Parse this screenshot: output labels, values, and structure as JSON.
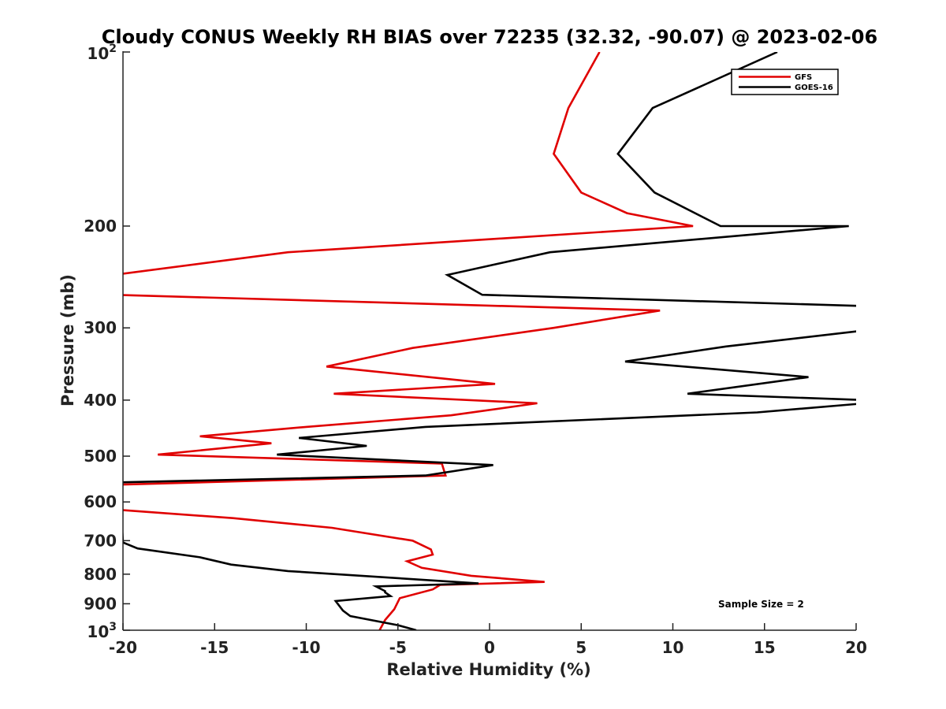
{
  "chart_data": {
    "type": "line",
    "title": "Cloudy CONUS Weekly RH BIAS over 72235 (32.32, -90.07) @ 2023-02-06",
    "xlabel": "Relative Humidity (%)",
    "ylabel": "Pressure (mb)",
    "xlim": [
      -20,
      20
    ],
    "ylim": [
      100,
      1000
    ],
    "yscale": "log",
    "y_reversed": true,
    "grid": false,
    "legend_position": "top-right",
    "x_ticks": [
      "-20",
      "-15",
      "-10",
      "-5",
      "0",
      "5",
      "10",
      "15",
      "20"
    ],
    "x_tick_values": [
      -20,
      -15,
      -10,
      -5,
      0,
      5,
      10,
      15,
      20
    ],
    "y_ticks": [
      {
        "value": 100,
        "base": "10",
        "exp": "2"
      },
      {
        "value": 200,
        "label": "200"
      },
      {
        "value": 300,
        "label": "300"
      },
      {
        "value": 400,
        "label": "400"
      },
      {
        "value": 500,
        "label": "500"
      },
      {
        "value": 600,
        "label": "600"
      },
      {
        "value": 700,
        "label": "700"
      },
      {
        "value": 800,
        "label": "800"
      },
      {
        "value": 900,
        "label": "900"
      },
      {
        "value": 1000,
        "base": "10",
        "exp": "3"
      }
    ],
    "annotation": "Sample Size = 2",
    "series": [
      {
        "name": "GFS",
        "color": "#e00000",
        "points": [
          [
            6.0,
            100
          ],
          [
            4.3,
            125
          ],
          [
            3.5,
            150
          ],
          [
            5.0,
            175
          ],
          [
            7.5,
            190
          ],
          [
            11.1,
            200
          ],
          [
            -11.0,
            222
          ],
          [
            -20.5,
            243
          ],
          [
            -21.0,
            255
          ],
          [
            -20.5,
            263
          ],
          [
            9.3,
            280
          ],
          [
            3.5,
            300
          ],
          [
            -4.2,
            325
          ],
          [
            -8.9,
            350
          ],
          [
            0.3,
            375
          ],
          [
            -8.5,
            390
          ],
          [
            2.6,
            405
          ],
          [
            -2.1,
            425
          ],
          [
            -10.0,
            445
          ],
          [
            -15.8,
            462
          ],
          [
            -11.9,
            475
          ],
          [
            -18.1,
            497
          ],
          [
            -2.6,
            515
          ],
          [
            -2.4,
            540
          ],
          [
            -20.2,
            560
          ],
          [
            -20.3,
            595
          ],
          [
            -20.0,
            620
          ],
          [
            -14.0,
            640
          ],
          [
            -8.6,
            665
          ],
          [
            -4.2,
            700
          ],
          [
            -3.2,
            725
          ],
          [
            -3.1,
            740
          ],
          [
            -4.5,
            760
          ],
          [
            -3.7,
            780
          ],
          [
            -1.0,
            805
          ],
          [
            3.0,
            825
          ],
          [
            -2.7,
            835
          ],
          [
            -3.1,
            850
          ],
          [
            -4.9,
            880
          ],
          [
            -5.2,
            920
          ],
          [
            -5.7,
            960
          ],
          [
            -6.0,
            1000
          ]
        ]
      },
      {
        "name": "GOES-16",
        "color": "#000000",
        "points": [
          [
            15.7,
            100
          ],
          [
            8.9,
            125
          ],
          [
            7.0,
            150
          ],
          [
            9.0,
            175
          ],
          [
            12.6,
            200
          ],
          [
            19.6,
            200
          ],
          [
            3.3,
            222
          ],
          [
            -2.3,
            243
          ],
          [
            -0.4,
            263
          ],
          [
            20.5,
            275
          ],
          [
            20.5,
            303
          ],
          [
            12.9,
            323
          ],
          [
            7.4,
            343
          ],
          [
            17.4,
            365
          ],
          [
            10.8,
            390
          ],
          [
            20.5,
            400
          ],
          [
            20.5,
            405
          ],
          [
            14.6,
            420
          ],
          [
            -3.5,
            445
          ],
          [
            -10.4,
            465
          ],
          [
            -6.7,
            480
          ],
          [
            -11.6,
            497
          ],
          [
            0.2,
            518
          ],
          [
            -3.5,
            540
          ],
          [
            -20.2,
            555
          ],
          [
            -20.0,
            705
          ],
          [
            -19.2,
            722
          ],
          [
            -15.8,
            748
          ],
          [
            -14.1,
            770
          ],
          [
            -11.0,
            790
          ],
          [
            -0.6,
            830
          ],
          [
            -6.2,
            840
          ],
          [
            -5.7,
            856
          ],
          [
            -5.7,
            860
          ],
          [
            -5.4,
            873
          ],
          [
            -8.4,
            890
          ],
          [
            -8.0,
            925
          ],
          [
            -7.6,
            945
          ],
          [
            -5.0,
            980
          ],
          [
            -4.0,
            1000
          ]
        ]
      }
    ]
  }
}
